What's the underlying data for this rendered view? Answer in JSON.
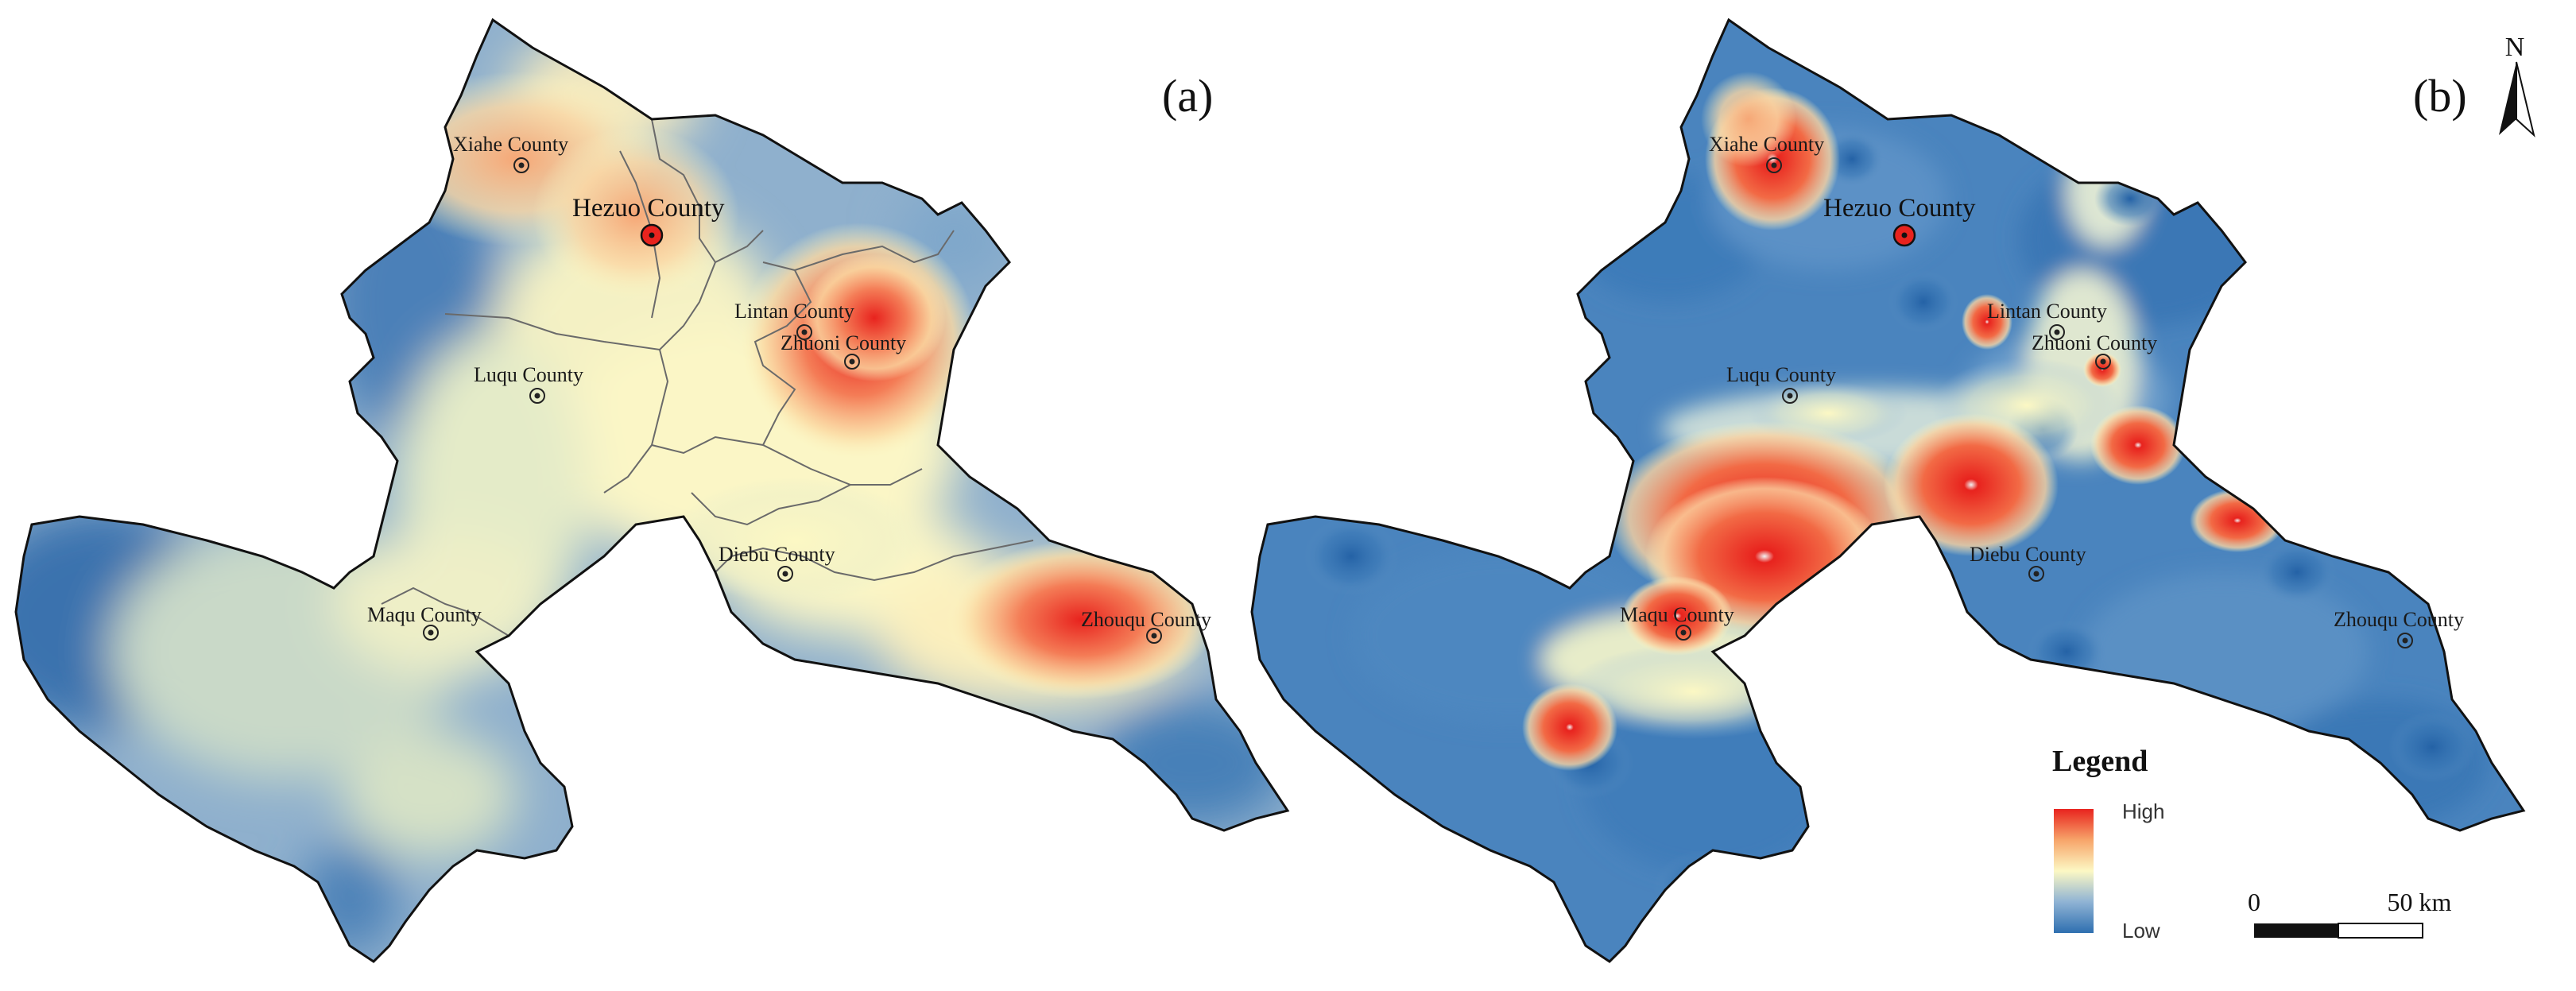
{
  "panels": {
    "a": {
      "label": "(a)"
    },
    "b": {
      "label": "(b)"
    }
  },
  "counties": {
    "xiahe": "Xiahe County",
    "hezuo": "Hezuo County",
    "lintan": "Lintan County",
    "zhuoni": "Zhuoni County",
    "luqu": "Luqu County",
    "diebu": "Diebu County",
    "maqu": "Maqu County",
    "zhouqu": "Zhouqu County"
  },
  "legend": {
    "title": "Legend",
    "high": "High",
    "low": "Low",
    "colors": [
      "#e8231e",
      "#f7a56a",
      "#fcf8c4",
      "#8fb3d4",
      "#2e6fb0"
    ]
  },
  "scale_bar": {
    "start": "0",
    "end": "50 km"
  },
  "north_arrow": {
    "label": "N"
  },
  "colors": {
    "low": "#2e6fb0",
    "mid": "#fcf8c4",
    "high": "#e8231e",
    "boundary": "#111111",
    "inner_boundary": "#6a6a6a"
  }
}
